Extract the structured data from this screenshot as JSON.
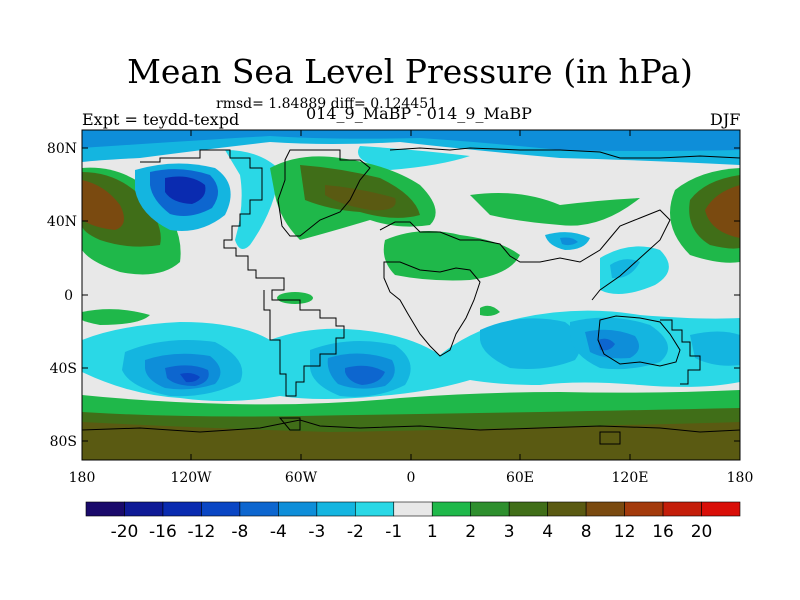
{
  "title": "Mean Sea Level Pressure (in hPa)",
  "stats": "rmsd= 1.84889 diff= 0.124451",
  "left_label": "Expt = teydd-texpd",
  "center_label": "014_9_MaBP - 014_9_MaBP",
  "right_label": "DJF",
  "chart_data": {
    "type": "heatmap",
    "title": "Mean Sea Level Pressure (in hPa)",
    "subtitle": "014_9_MaBP - 014_9_MaBP",
    "x_ticks": [
      "180",
      "120W",
      "60W",
      "0",
      "60E",
      "120E",
      "180"
    ],
    "y_ticks": [
      "80N",
      "40N",
      "0",
      "40S",
      "80S"
    ],
    "x_range": [
      -180,
      180
    ],
    "y_range": [
      -90,
      90
    ],
    "colorbar": {
      "levels": [
        "-20",
        "-16",
        "-12",
        "-8",
        "-4",
        "-3",
        "-2",
        "-1",
        "1",
        "2",
        "3",
        "4",
        "8",
        "12",
        "16",
        "20"
      ],
      "colors": [
        "#1a0a6b",
        "#0f1a96",
        "#0a2bb0",
        "#0a46c4",
        "#0d66cf",
        "#0e8ed9",
        "#14b5e0",
        "#2ad8e6",
        "#e8e8e8",
        "#1fb84a",
        "#2e8f2e",
        "#406e18",
        "#5a5a12",
        "#7a4a10",
        "#a33a0c",
        "#c41e0a",
        "#d90e08"
      ]
    }
  }
}
